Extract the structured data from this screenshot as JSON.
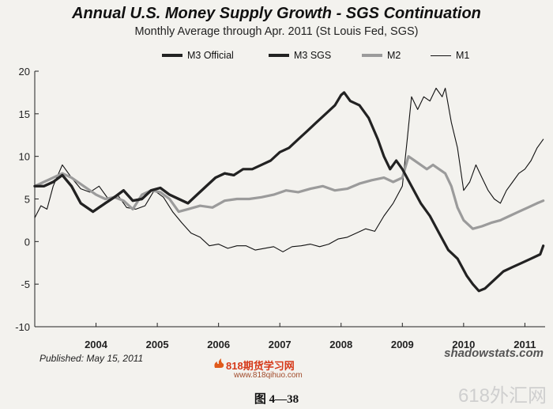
{
  "chart_data": {
    "type": "line",
    "title": "Annual U.S. Money Supply Growth - SGS Continuation",
    "subtitle": "Monthly Average through Apr. 2011   (St Louis Fed, SGS)",
    "xlabel": "",
    "ylabel": "",
    "ylim": [
      -10,
      20
    ],
    "yticks": [
      -10,
      -5,
      0,
      5,
      10,
      15,
      20
    ],
    "xlim": [
      2003.0,
      2011.33
    ],
    "xticks": [
      {
        "value": 2004.0,
        "label": "2004"
      },
      {
        "value": 2005.0,
        "label": "2005"
      },
      {
        "value": 2006.0,
        "label": "2006"
      },
      {
        "value": 2007.0,
        "label": "2007"
      },
      {
        "value": 2008.0,
        "label": "2008"
      },
      {
        "value": 2009.0,
        "label": "2009"
      },
      {
        "value": 2010.0,
        "label": "2010"
      },
      {
        "value": 2011.0,
        "label": "2011"
      }
    ],
    "grid": false,
    "legend_position": "top",
    "series": [
      {
        "name": "M1",
        "color": "#111111",
        "style": "thin",
        "x": [
          2003.0,
          2003.1,
          2003.2,
          2003.3,
          2003.45,
          2003.6,
          2003.75,
          2003.9,
          2004.05,
          2004.2,
          2004.35,
          2004.5,
          2004.65,
          2004.8,
          2004.95,
          2005.1,
          2005.25,
          2005.4,
          2005.55,
          2005.7,
          2005.85,
          2006.0,
          2006.15,
          2006.3,
          2006.45,
          2006.6,
          2006.75,
          2006.9,
          2007.05,
          2007.2,
          2007.35,
          2007.5,
          2007.65,
          2007.8,
          2007.95,
          2008.1,
          2008.25,
          2008.4,
          2008.55,
          2008.7,
          2008.85,
          2009.0,
          2009.08,
          2009.15,
          2009.25,
          2009.35,
          2009.45,
          2009.55,
          2009.65,
          2009.7,
          2009.8,
          2009.9,
          2010.0,
          2010.1,
          2010.2,
          2010.3,
          2010.4,
          2010.5,
          2010.6,
          2010.7,
          2010.8,
          2010.9,
          2011.0,
          2011.1,
          2011.2,
          2011.3
        ],
        "values": [
          2.8,
          4.2,
          3.8,
          6.5,
          9.0,
          7.5,
          6.2,
          5.8,
          6.5,
          5.0,
          5.5,
          4.0,
          3.8,
          4.2,
          6.0,
          5.2,
          3.5,
          2.2,
          1.0,
          0.5,
          -0.5,
          -0.3,
          -0.8,
          -0.5,
          -0.5,
          -1.0,
          -0.8,
          -0.6,
          -1.2,
          -0.6,
          -0.5,
          -0.3,
          -0.6,
          -0.3,
          0.3,
          0.5,
          1.0,
          1.5,
          1.2,
          3.0,
          4.5,
          6.5,
          12.0,
          17.0,
          15.5,
          17.0,
          16.5,
          18.0,
          17.0,
          18.0,
          14.0,
          11.0,
          6.0,
          7.0,
          9.0,
          7.5,
          6.0,
          5.0,
          4.5,
          6.0,
          7.0,
          8.0,
          8.5,
          9.5,
          11.0,
          12.0
        ]
      },
      {
        "name": "M2",
        "color": "#9b9b9b",
        "style": "thick",
        "x": [
          2003.0,
          2003.15,
          2003.3,
          2003.45,
          2003.6,
          2003.8,
          2004.0,
          2004.15,
          2004.3,
          2004.45,
          2004.6,
          2004.75,
          2004.9,
          2005.05,
          2005.2,
          2005.35,
          2005.5,
          2005.7,
          2005.9,
          2006.1,
          2006.3,
          2006.5,
          2006.7,
          2006.9,
          2007.1,
          2007.3,
          2007.5,
          2007.7,
          2007.9,
          2008.1,
          2008.3,
          2008.5,
          2008.7,
          2008.85,
          2009.0,
          2009.1,
          2009.2,
          2009.3,
          2009.4,
          2009.5,
          2009.6,
          2009.7,
          2009.8,
          2009.9,
          2010.0,
          2010.15,
          2010.3,
          2010.45,
          2010.6,
          2010.75,
          2010.9,
          2011.05,
          2011.2,
          2011.3
        ],
        "values": [
          6.5,
          7.0,
          7.5,
          8.0,
          7.5,
          6.5,
          5.5,
          5.0,
          5.2,
          4.8,
          3.8,
          5.5,
          6.0,
          5.8,
          5.0,
          3.5,
          3.8,
          4.2,
          4.0,
          4.8,
          5.0,
          5.0,
          5.2,
          5.5,
          6.0,
          5.8,
          6.2,
          6.5,
          6.0,
          6.2,
          6.8,
          7.2,
          7.5,
          7.0,
          7.5,
          10.0,
          9.5,
          9.0,
          8.5,
          9.0,
          8.5,
          8.0,
          6.5,
          4.0,
          2.5,
          1.5,
          1.8,
          2.2,
          2.5,
          3.0,
          3.5,
          4.0,
          4.5,
          4.8
        ]
      },
      {
        "name": "M3 SGS",
        "color": "#222222",
        "style": "thick",
        "x": [
          2003.0,
          2003.15,
          2003.3,
          2003.45,
          2003.6,
          2003.75,
          2003.95,
          2004.15,
          2004.3,
          2004.45,
          2004.6,
          2004.75,
          2004.9,
          2005.05,
          2005.2,
          2005.35,
          2005.5,
          2005.65,
          2005.8,
          2005.95,
          2006.1,
          2006.25,
          2006.4,
          2006.55,
          2006.7,
          2006.85,
          2007.0,
          2007.15,
          2007.3,
          2007.45,
          2007.6,
          2007.75,
          2007.9,
          2008.0,
          2008.05,
          2008.15,
          2008.3,
          2008.45,
          2008.6,
          2008.7,
          2008.8,
          2008.9,
          2009.0,
          2009.15,
          2009.3,
          2009.45,
          2009.6,
          2009.75,
          2009.9,
          2010.05,
          2010.15,
          2010.25,
          2010.35,
          2010.5,
          2010.65,
          2010.8,
          2010.95,
          2011.1,
          2011.25,
          2011.3
        ],
        "values": [
          6.5,
          6.5,
          7.0,
          7.8,
          6.5,
          4.5,
          3.5,
          4.5,
          5.2,
          6.0,
          4.8,
          5.0,
          6.0,
          6.3,
          5.5,
          5.0,
          4.5,
          5.5,
          6.5,
          7.5,
          8.0,
          7.8,
          8.5,
          8.5,
          9.0,
          9.5,
          10.5,
          11.0,
          12.0,
          13.0,
          14.0,
          15.0,
          16.0,
          17.2,
          17.5,
          16.5,
          16.0,
          14.5,
          12.0,
          10.0,
          8.5,
          9.5,
          8.5,
          6.5,
          4.5,
          3.0,
          1.0,
          -1.0,
          -2.0,
          -4.0,
          -5.0,
          -5.8,
          -5.5,
          -4.5,
          -3.5,
          -3.0,
          -2.5,
          -2.0,
          -1.5,
          -0.5
        ]
      },
      {
        "name": "M3 Official",
        "color": "#222222",
        "style": "thick",
        "x": [
          2003.0,
          2003.15,
          2003.3,
          2003.45,
          2003.6,
          2003.75,
          2003.95,
          2004.15,
          2004.3,
          2004.45,
          2004.6,
          2004.75,
          2004.9,
          2005.05,
          2005.2,
          2005.35,
          2005.5,
          2005.65,
          2005.8,
          2005.95,
          2006.1,
          2006.25
        ],
        "values": [
          6.5,
          6.5,
          7.0,
          7.8,
          6.5,
          4.5,
          3.5,
          4.5,
          5.2,
          6.0,
          4.8,
          5.0,
          6.0,
          6.3,
          5.5,
          5.0,
          4.5,
          5.5,
          6.5,
          7.5,
          8.0,
          7.8
        ]
      }
    ],
    "legend": [
      "M3 Official",
      "M3 SGS",
      "M2",
      "M1"
    ]
  },
  "footer": {
    "published": "Published: May 15, 2011",
    "credit": "shadowstats.com",
    "logo_text": "818期货学习网",
    "logo_url": "www.818qihuo.com",
    "watermark": "618外汇网",
    "figure_caption": "图 4—38"
  }
}
